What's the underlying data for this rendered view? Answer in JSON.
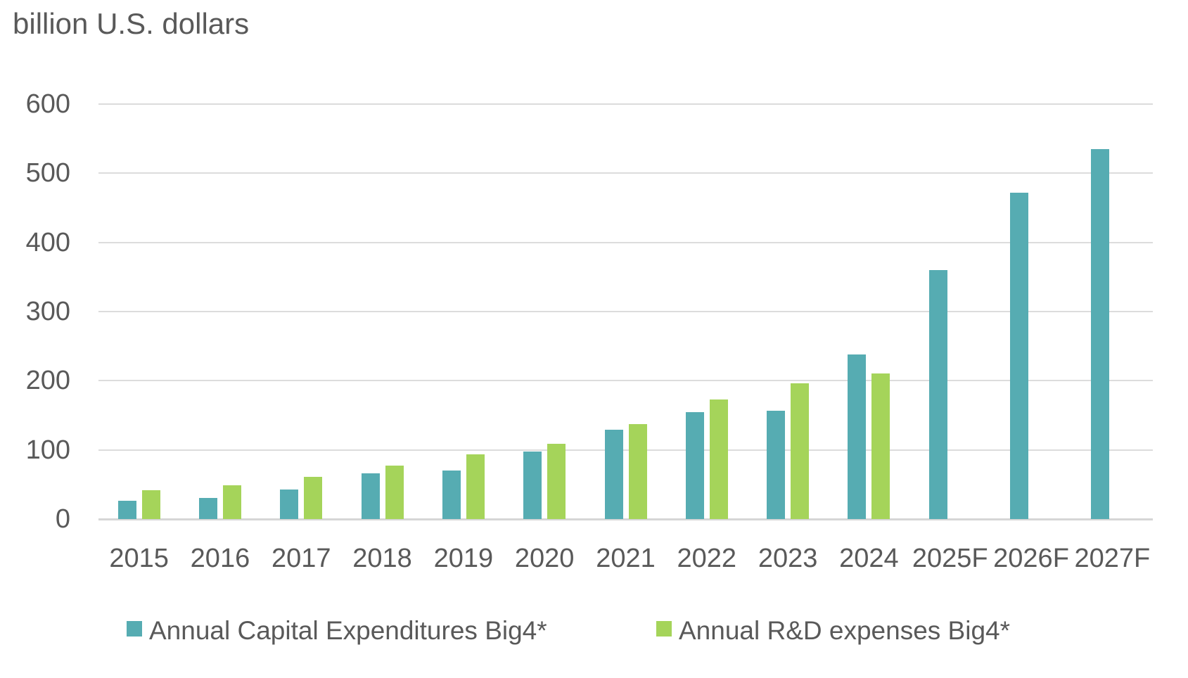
{
  "chart_data": {
    "type": "bar",
    "title": "billion U.S. dollars",
    "categories": [
      "2015",
      "2016",
      "2017",
      "2018",
      "2019",
      "2020",
      "2021",
      "2022",
      "2023",
      "2024",
      "2025F",
      "2026F",
      "2027F"
    ],
    "series": [
      {
        "name": "Annual Capital Expenditures Big4*",
        "color": "#56ACB2",
        "values": [
          26,
          31,
          43,
          66,
          70,
          98,
          129,
          155,
          157,
          238,
          360,
          472,
          535
        ]
      },
      {
        "name": "Annual R&D expenses Big4*",
        "color": "#A5D45A",
        "values": [
          42,
          49,
          61,
          77,
          94,
          109,
          137,
          173,
          196,
          211,
          null,
          null,
          null
        ]
      }
    ],
    "xlabel": "",
    "ylabel": "billion U.S. dollars",
    "ylim": [
      0,
      600
    ],
    "ytick_step": 100,
    "yticks": [
      "0",
      "100",
      "200",
      "300",
      "400",
      "500",
      "600"
    ],
    "grid": true,
    "legend_position": "bottom"
  },
  "colors": {
    "text": "#595959",
    "gridline": "#DCDCDC",
    "axis_line": "#D6D6D6",
    "background": "#FFFFFF",
    "capex": "#56ACB2",
    "rnd": "#A5D45A"
  }
}
